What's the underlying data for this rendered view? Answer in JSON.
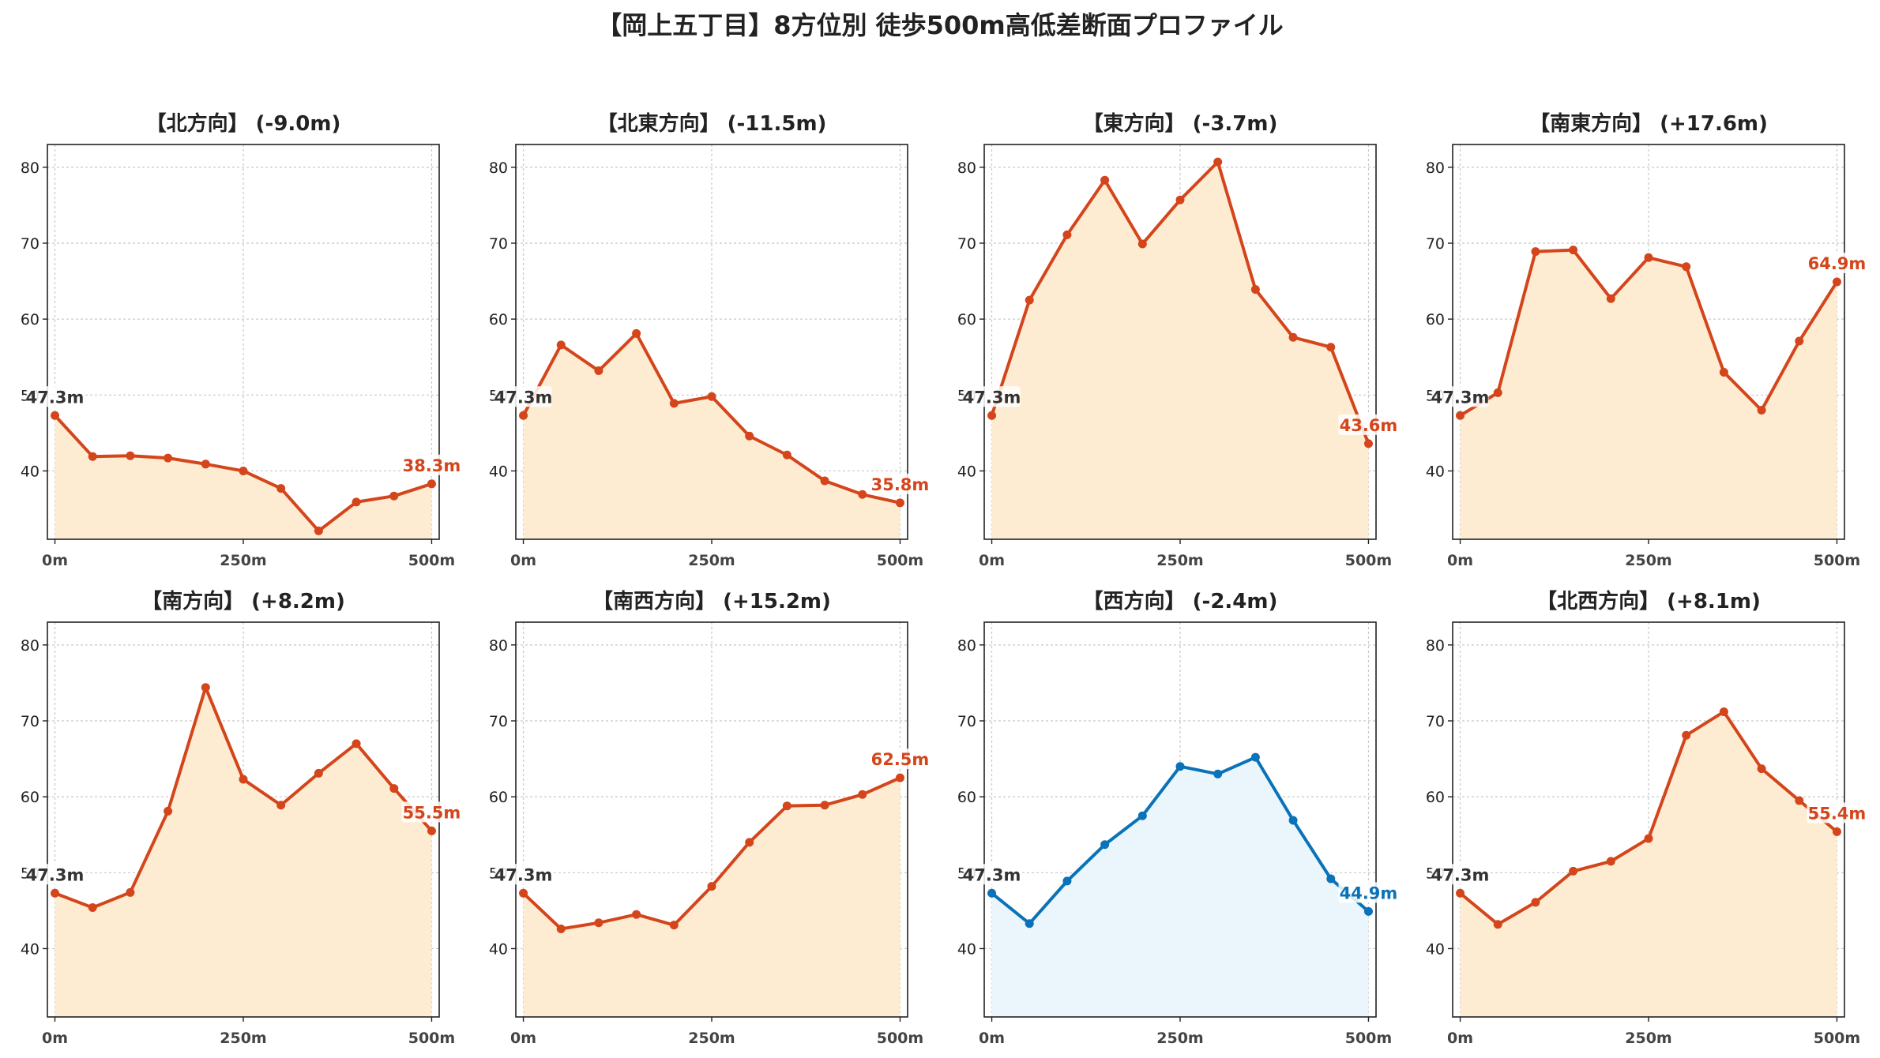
{
  "title": "【岡上五丁目】8方位別 徒歩500m高低差断面プロファイル",
  "chart_data": [
    {
      "type": "area",
      "title": "【北方向】 (-9.0m)",
      "x": [
        0,
        50,
        100,
        150,
        200,
        250,
        300,
        350,
        400,
        450,
        500
      ],
      "values": [
        47.3,
        41.9,
        42.0,
        41.7,
        40.9,
        40.0,
        37.7,
        32.1,
        35.9,
        36.7,
        38.3
      ],
      "start_label": "47.3m",
      "end_label": "38.3m",
      "color": "#d4451b",
      "fill": "#fdecd2",
      "yticks": [
        40,
        50,
        60,
        70,
        80
      ],
      "ylim": [
        31,
        83
      ],
      "xticks": [
        "0m",
        "250m",
        "500m"
      ],
      "xlim": [
        -10,
        510
      ],
      "grid": true
    },
    {
      "type": "area",
      "title": "【北東方向】 (-11.5m)",
      "x": [
        0,
        50,
        100,
        150,
        200,
        250,
        300,
        350,
        400,
        450,
        500
      ],
      "values": [
        47.3,
        56.6,
        53.2,
        58.1,
        48.9,
        49.8,
        44.6,
        42.1,
        38.7,
        36.9,
        35.8
      ],
      "start_label": "47.3m",
      "end_label": "35.8m",
      "color": "#d4451b",
      "fill": "#fdecd2",
      "yticks": [
        40,
        50,
        60,
        70,
        80
      ],
      "ylim": [
        31,
        83
      ],
      "xticks": [
        "0m",
        "250m",
        "500m"
      ],
      "xlim": [
        -10,
        510
      ],
      "grid": true
    },
    {
      "type": "area",
      "title": "【東方向】 (-3.7m)",
      "x": [
        0,
        50,
        100,
        150,
        200,
        250,
        300,
        350,
        400,
        450,
        500
      ],
      "values": [
        47.3,
        62.5,
        71.1,
        78.3,
        69.9,
        75.7,
        80.7,
        63.9,
        57.6,
        56.3,
        43.6
      ],
      "start_label": "47.3m",
      "end_label": "43.6m",
      "color": "#d4451b",
      "fill": "#fdecd2",
      "yticks": [
        40,
        50,
        60,
        70,
        80
      ],
      "ylim": [
        31,
        83
      ],
      "xticks": [
        "0m",
        "250m",
        "500m"
      ],
      "xlim": [
        -10,
        510
      ],
      "grid": true
    },
    {
      "type": "area",
      "title": "【南東方向】 (+17.6m)",
      "x": [
        0,
        50,
        100,
        150,
        200,
        250,
        300,
        350,
        400,
        450,
        500
      ],
      "values": [
        47.3,
        50.3,
        68.9,
        69.1,
        62.7,
        68.1,
        66.9,
        53.0,
        48.0,
        57.1,
        64.9
      ],
      "start_label": "47.3m",
      "end_label": "64.9m",
      "color": "#d4451b",
      "fill": "#fdecd2",
      "yticks": [
        40,
        50,
        60,
        70,
        80
      ],
      "ylim": [
        31,
        83
      ],
      "xticks": [
        "0m",
        "250m",
        "500m"
      ],
      "xlim": [
        -10,
        510
      ],
      "grid": true
    },
    {
      "type": "area",
      "title": "【南方向】 (+8.2m)",
      "x": [
        0,
        50,
        100,
        150,
        200,
        250,
        300,
        350,
        400,
        450,
        500
      ],
      "values": [
        47.3,
        45.4,
        47.4,
        58.1,
        74.4,
        62.3,
        58.9,
        63.1,
        67.0,
        61.1,
        55.5
      ],
      "start_label": "47.3m",
      "end_label": "55.5m",
      "color": "#d4451b",
      "fill": "#fdecd2",
      "yticks": [
        40,
        50,
        60,
        70,
        80
      ],
      "ylim": [
        31,
        83
      ],
      "xticks": [
        "0m",
        "250m",
        "500m"
      ],
      "xlim": [
        -10,
        510
      ],
      "grid": true
    },
    {
      "type": "area",
      "title": "【南西方向】 (+15.2m)",
      "x": [
        0,
        50,
        100,
        150,
        200,
        250,
        300,
        350,
        400,
        450,
        500
      ],
      "values": [
        47.3,
        42.6,
        43.4,
        44.5,
        43.1,
        48.2,
        54.0,
        58.8,
        58.9,
        60.3,
        62.5
      ],
      "start_label": "47.3m",
      "end_label": "62.5m",
      "color": "#d4451b",
      "fill": "#fdecd2",
      "yticks": [
        40,
        50,
        60,
        70,
        80
      ],
      "ylim": [
        31,
        83
      ],
      "xticks": [
        "0m",
        "250m",
        "500m"
      ],
      "xlim": [
        -10,
        510
      ],
      "grid": true
    },
    {
      "type": "area",
      "title": "【西方向】 (-2.4m)",
      "x": [
        0,
        50,
        100,
        150,
        200,
        250,
        300,
        350,
        400,
        450,
        500
      ],
      "values": [
        47.3,
        43.3,
        48.9,
        53.7,
        57.5,
        64.0,
        63.0,
        65.2,
        56.9,
        49.2,
        44.9
      ],
      "start_label": "47.3m",
      "end_label": "44.9m",
      "color": "#0a72b8",
      "fill": "#eaf6fc",
      "yticks": [
        40,
        50,
        60,
        70,
        80
      ],
      "ylim": [
        31,
        83
      ],
      "xticks": [
        "0m",
        "250m",
        "500m"
      ],
      "xlim": [
        -10,
        510
      ],
      "grid": true
    },
    {
      "type": "area",
      "title": "【北西方向】 (+8.1m)",
      "x": [
        0,
        50,
        100,
        150,
        200,
        250,
        300,
        350,
        400,
        450,
        500
      ],
      "values": [
        47.3,
        43.2,
        46.1,
        50.2,
        51.5,
        54.5,
        68.1,
        71.2,
        63.7,
        59.5,
        55.4
      ],
      "start_label": "47.3m",
      "end_label": "55.4m",
      "color": "#d4451b",
      "fill": "#fdecd2",
      "yticks": [
        40,
        50,
        60,
        70,
        80
      ],
      "ylim": [
        31,
        83
      ],
      "xticks": [
        "0m",
        "250m",
        "500m"
      ],
      "xlim": [
        -10,
        510
      ],
      "grid": true
    }
  ]
}
